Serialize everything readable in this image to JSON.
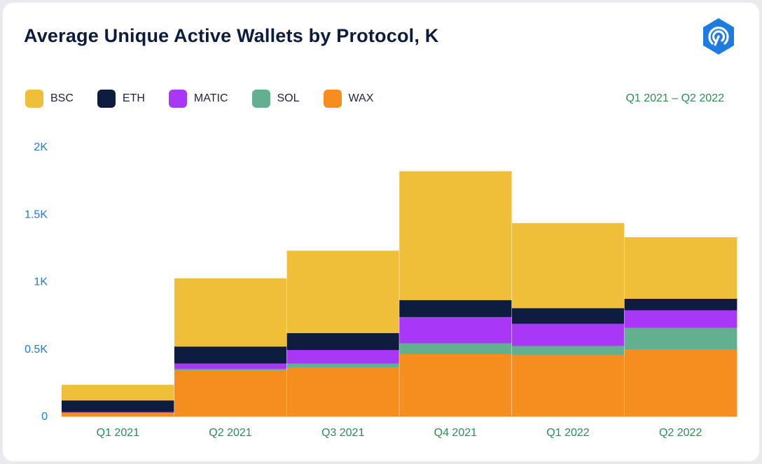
{
  "header": {
    "title": "Average Unique Active Wallets by Protocol, K",
    "date_range": "Q1 2021 – Q2 2022"
  },
  "colors": {
    "BSC": "#f0bf3a",
    "ETH": "#0d1c3f",
    "MATIC": "#a838f5",
    "SOL": "#62b090",
    "WAX": "#f68d1f",
    "tick_y": "#1e7be0",
    "tick_x": "#2e8a57",
    "logo": "#1e7be0"
  },
  "chart_data": {
    "type": "bar",
    "stacked": true,
    "title": "Average Unique Active Wallets by Protocol, K",
    "categories": [
      "Q1 2021",
      "Q2 2021",
      "Q3 2021",
      "Q4 2021",
      "Q1 2022",
      "Q2 2022"
    ],
    "series": [
      {
        "name": "WAX",
        "values": [
          30,
          345,
          365,
          465,
          460,
          500
        ]
      },
      {
        "name": "SOL",
        "values": [
          0,
          10,
          30,
          80,
          65,
          160
        ]
      },
      {
        "name": "MATIC",
        "values": [
          5,
          40,
          100,
          195,
          165,
          130
        ]
      },
      {
        "name": "ETH",
        "values": [
          85,
          125,
          125,
          125,
          115,
          85
        ]
      },
      {
        "name": "BSC",
        "values": [
          115,
          505,
          610,
          955,
          630,
          455
        ]
      }
    ],
    "ylim": [
      0,
      2000
    ],
    "yticks": [
      0,
      500,
      1000,
      1500,
      2000
    ],
    "ytick_labels": [
      "0",
      "0.5K",
      "1K",
      "1.5K",
      "2K"
    ],
    "grid": false,
    "legend": "top-left"
  }
}
